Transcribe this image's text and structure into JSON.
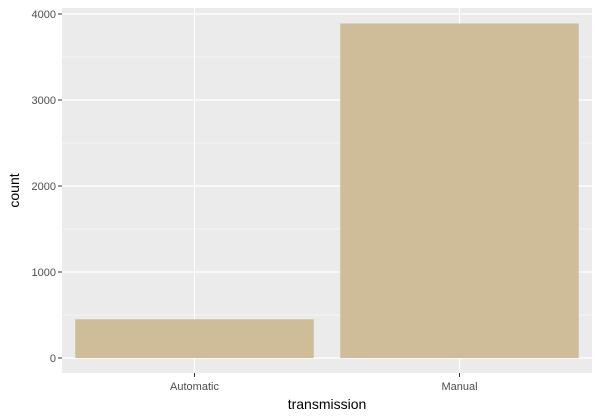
{
  "chart_data": {
    "type": "bar",
    "title": "",
    "xlabel": "transmission",
    "ylabel": "count",
    "categories": [
      "Automatic",
      "Manual"
    ],
    "values": [
      450,
      3890
    ],
    "ylim": [
      0,
      4000
    ],
    "yticks": [
      0,
      1000,
      2000,
      3000,
      4000
    ],
    "grid": true,
    "legend": "none",
    "colors": {
      "panel_bg": "#EBEBEB",
      "grid_major": "#FFFFFF",
      "bar_fill": "#CFBC98",
      "tick_text": "#4D4D4D",
      "tick_mark": "#333333"
    }
  }
}
